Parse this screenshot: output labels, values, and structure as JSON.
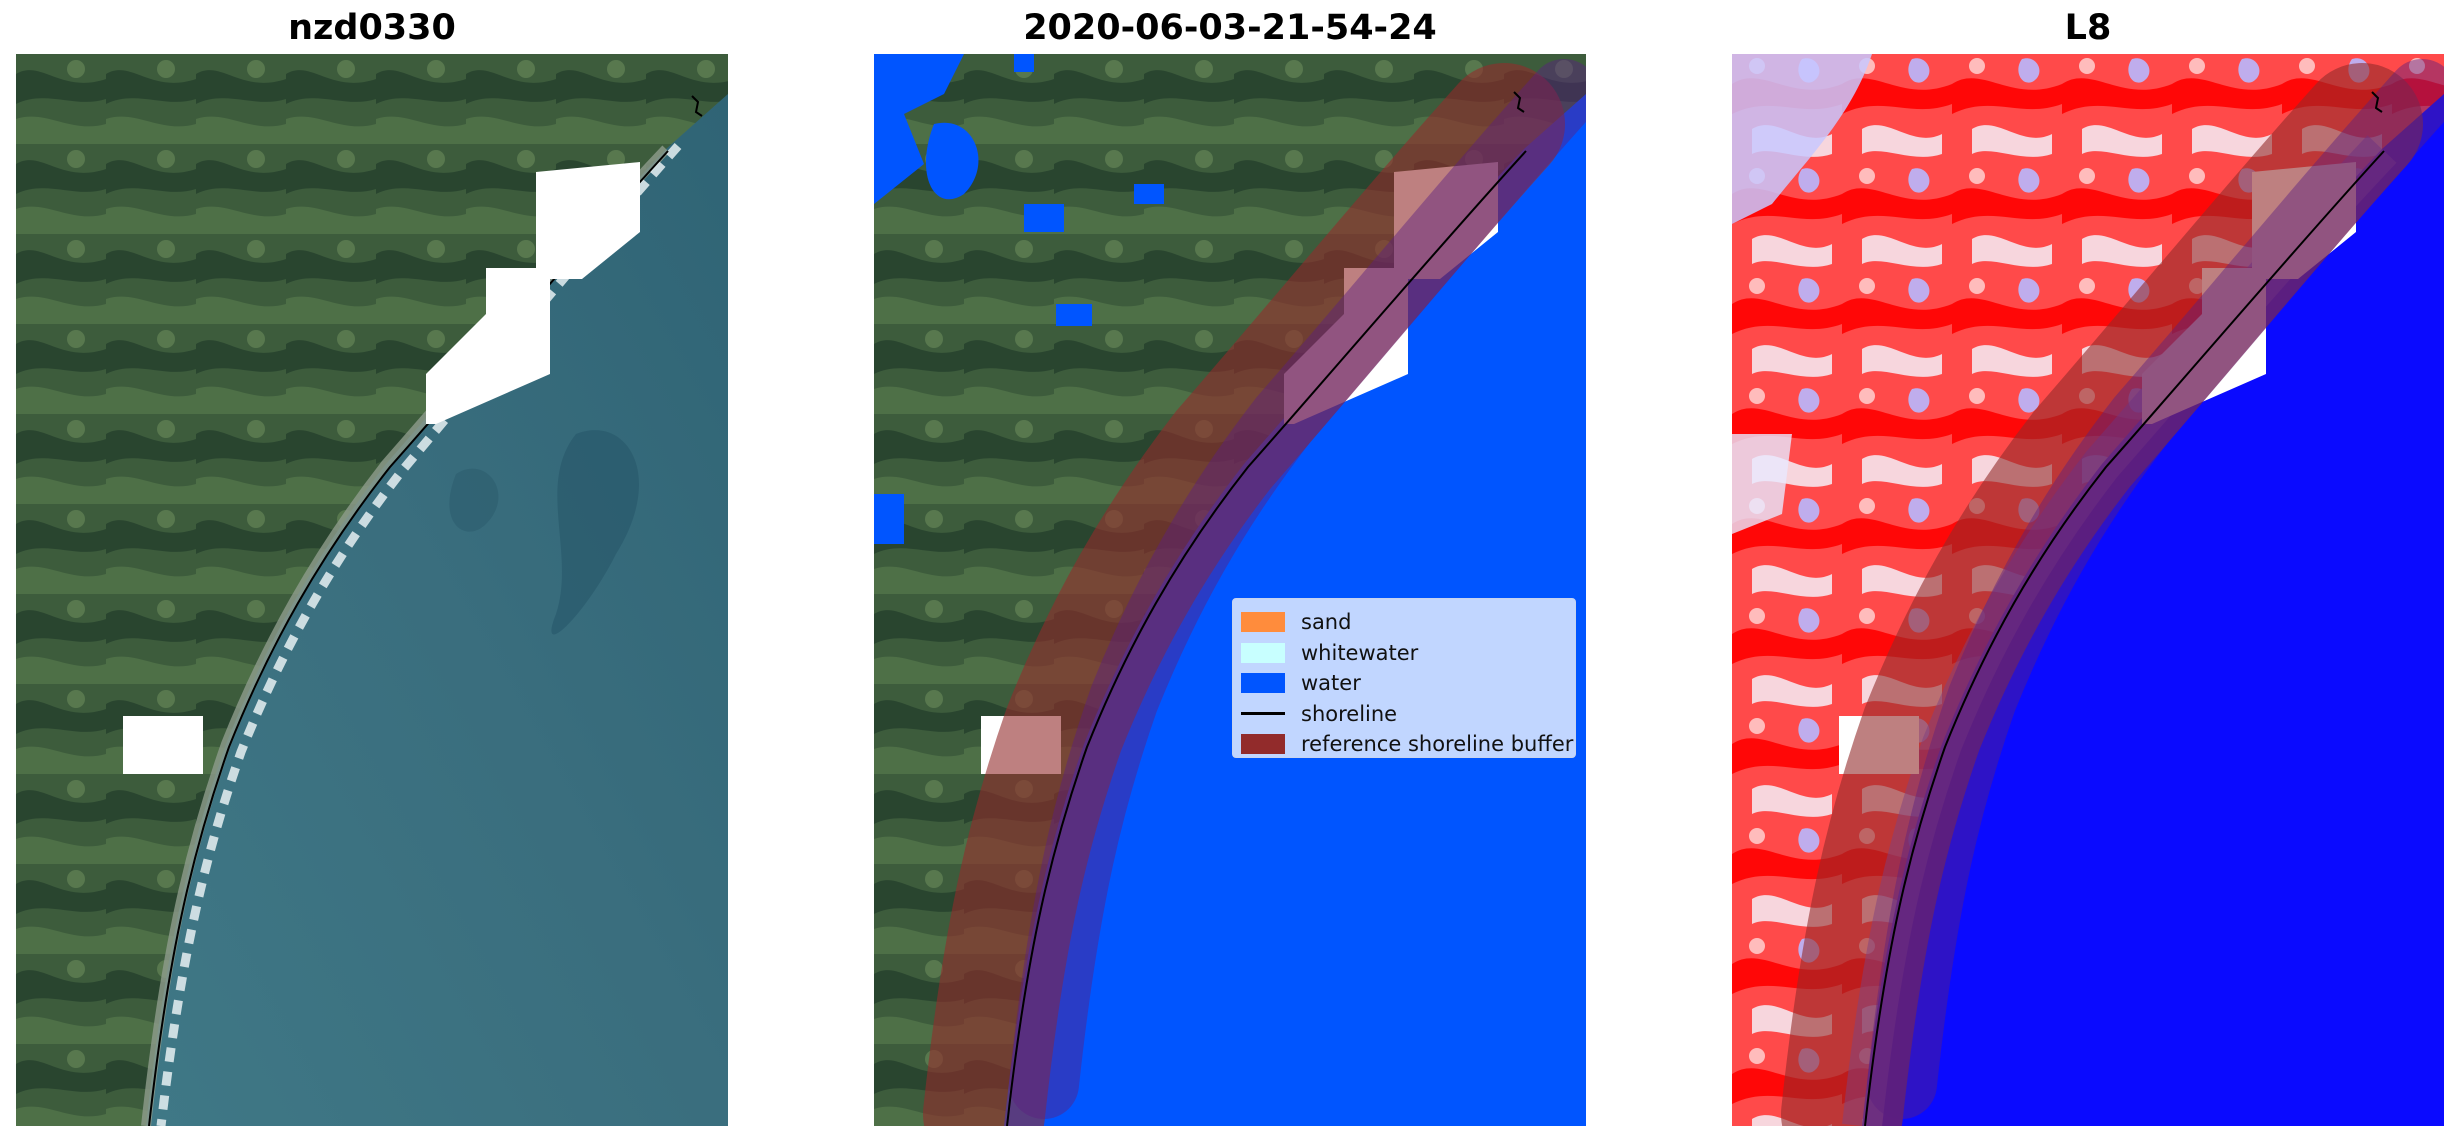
{
  "figure": {
    "panels": [
      {
        "title": "nzd0330",
        "content": "rgb-satellite-image"
      },
      {
        "title": "2020-06-03-21-54-24",
        "content": "classified-image"
      },
      {
        "title": "L8",
        "content": "water-index-image"
      }
    ],
    "legend": {
      "placement": "center-right of middle panel",
      "items": [
        {
          "label": "sand",
          "color": "#ff8c3c",
          "kind": "patch"
        },
        {
          "label": "whitewater",
          "color": "#c8ffff",
          "kind": "patch"
        },
        {
          "label": "water",
          "color": "#0055ff",
          "kind": "patch"
        },
        {
          "label": "shoreline",
          "color": "#000000",
          "kind": "line"
        },
        {
          "label": "reference shoreline buffer",
          "color": "#922b2b",
          "kind": "patch"
        }
      ]
    },
    "colors": {
      "land_dark": "#2c4a33",
      "land_green": "#4e6e48",
      "sea_rgb": "#3e7281",
      "water_class": "#0055ff",
      "buffer": "#922b2b",
      "index_red": "#ff0000",
      "index_blue": "#0000ff",
      "cloud_mask": "#ffffff"
    }
  }
}
